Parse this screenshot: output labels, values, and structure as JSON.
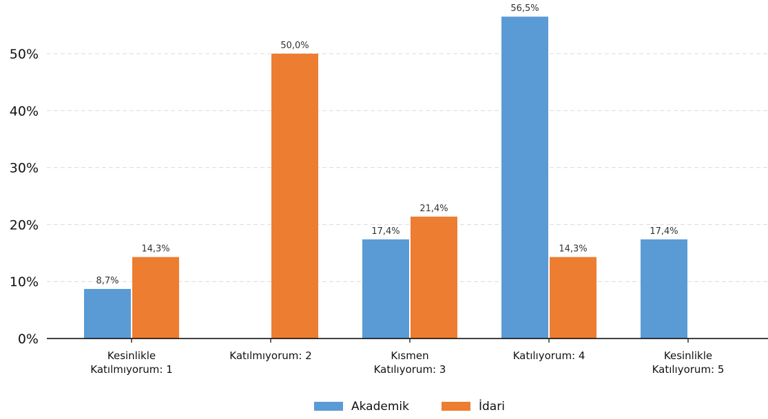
{
  "chart_data": {
    "type": "bar",
    "categories": [
      [
        "Kesinlikle",
        "Katılmıyorum: 1"
      ],
      [
        "Katılmıyorum: 2"
      ],
      [
        "Kısmen",
        "Katılıyorum: 3"
      ],
      [
        "Katılıyorum: 4"
      ],
      [
        "Kesinlikle",
        "Katılıyorum: 5"
      ]
    ],
    "series": [
      {
        "name": "Akademik",
        "color": "#5b9bd5",
        "values": [
          8.7,
          0,
          17.4,
          56.5,
          17.4
        ],
        "labels": [
          "8,7%",
          "",
          "17,4%",
          "56,5%",
          "17,4%"
        ]
      },
      {
        "name": "İdari",
        "color": "#ed7d31",
        "values": [
          14.3,
          50.0,
          21.4,
          14.3,
          0
        ],
        "labels": [
          "14,3%",
          "50,0%",
          "21,4%",
          "14,3%",
          ""
        ]
      }
    ],
    "yticks": [
      0,
      10,
      20,
      30,
      40,
      50
    ],
    "ytick_labels": [
      "0%",
      "10%",
      "20%",
      "30%",
      "40%",
      "50%"
    ],
    "ylim": [
      0,
      58
    ],
    "grid": true,
    "legend_position": "bottom-center"
  }
}
